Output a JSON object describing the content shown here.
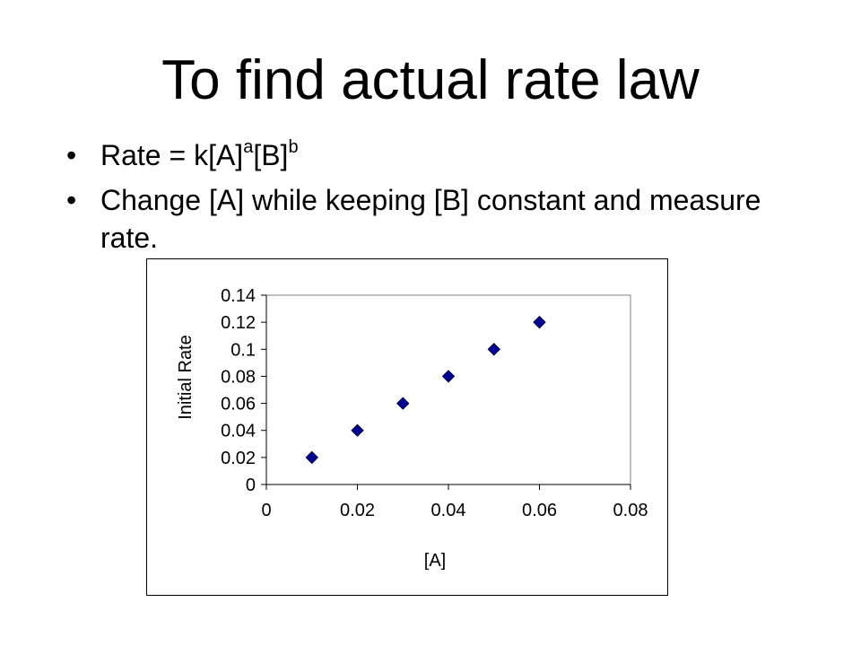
{
  "slide": {
    "title": "To find actual rate law",
    "bullets": [
      {
        "dot": "•",
        "text_main": "Rate = k[A]",
        "sup_a": "a",
        "text_mid": "[B]",
        "sup_b": "b"
      },
      {
        "dot": "•",
        "text": "Change [A] while keeping [B] constant and measure rate."
      }
    ]
  },
  "chart_data": {
    "type": "scatter",
    "title": "",
    "xlabel": "[A]",
    "ylabel": "Initial Rate",
    "x": [
      0.01,
      0.02,
      0.03,
      0.04,
      0.05,
      0.06
    ],
    "y": [
      0.02,
      0.04,
      0.06,
      0.08,
      0.1,
      0.12
    ],
    "xlim": [
      0,
      0.08
    ],
    "ylim": [
      0,
      0.14
    ],
    "x_ticks": [
      "0",
      "0.02",
      "0.04",
      "0.06",
      "0.08"
    ],
    "y_ticks": [
      "0",
      "0.02",
      "0.04",
      "0.06",
      "0.08",
      "0.1",
      "0.12",
      "0.14"
    ],
    "grid": false,
    "legend": "none",
    "marker": "diamond",
    "marker_color": "#000099"
  }
}
